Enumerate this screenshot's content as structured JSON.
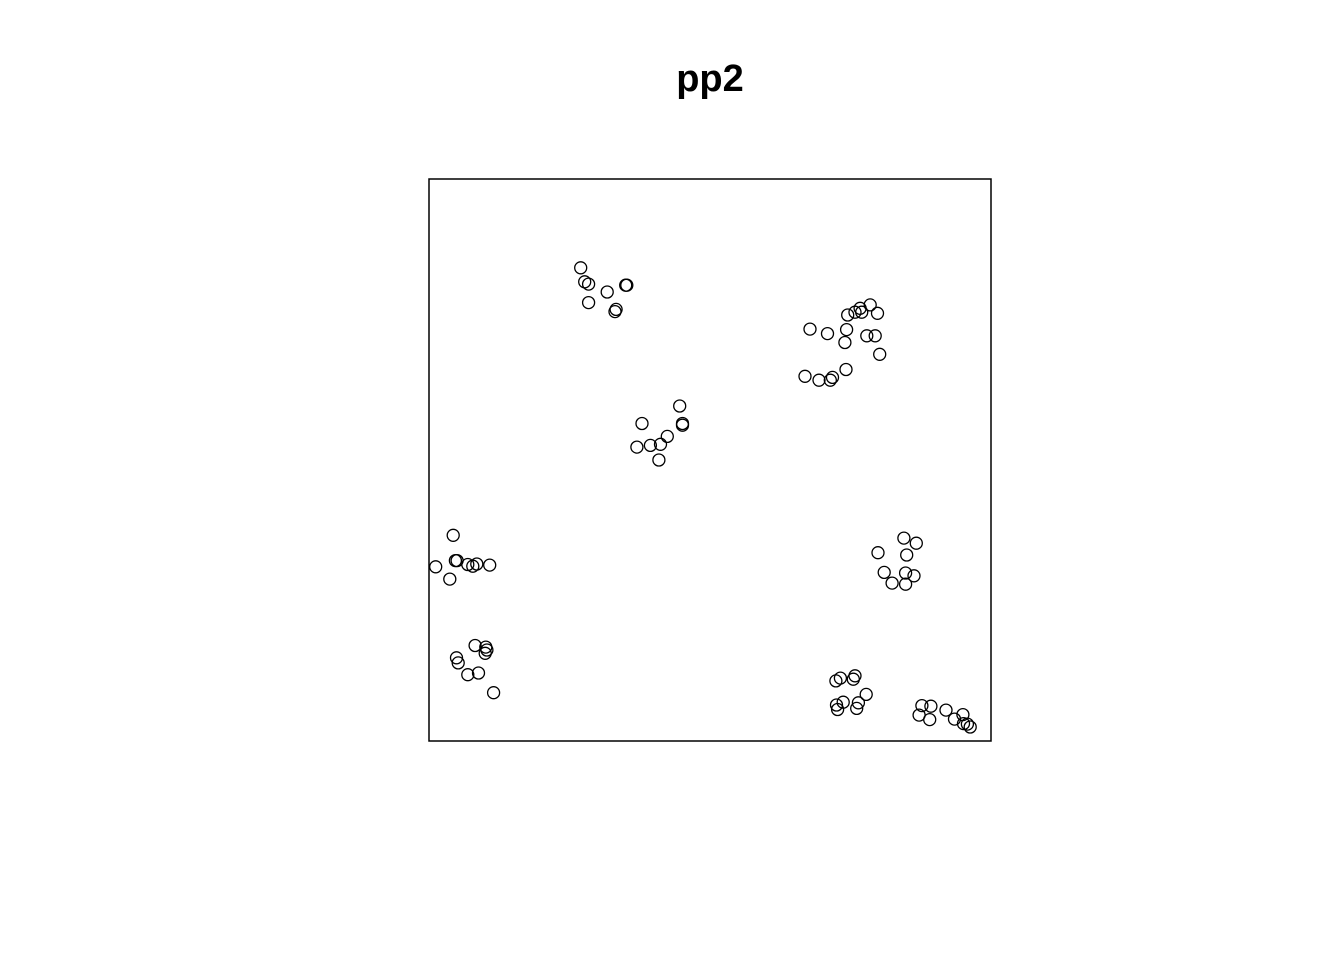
{
  "chart_data": {
    "type": "scatter",
    "title": "pp2",
    "xlabel": "",
    "ylabel": "",
    "xlim": [
      0,
      1
    ],
    "ylim": [
      0,
      1
    ],
    "axes_shown": false,
    "marker": "open-circle",
    "marker_color": "#000000",
    "points": [
      [
        0.27,
        0.842
      ],
      [
        0.277,
        0.817
      ],
      [
        0.284,
        0.813
      ],
      [
        0.284,
        0.78
      ],
      [
        0.317,
        0.799
      ],
      [
        0.35,
        0.811
      ],
      [
        0.352,
        0.811
      ],
      [
        0.333,
        0.768
      ],
      [
        0.331,
        0.764
      ],
      [
        0.678,
        0.733
      ],
      [
        0.709,
        0.725
      ],
      [
        0.74,
        0.709
      ],
      [
        0.743,
        0.732
      ],
      [
        0.745,
        0.758
      ],
      [
        0.758,
        0.763
      ],
      [
        0.767,
        0.77
      ],
      [
        0.77,
        0.763
      ],
      [
        0.785,
        0.776
      ],
      [
        0.798,
        0.761
      ],
      [
        0.779,
        0.721
      ],
      [
        0.794,
        0.721
      ],
      [
        0.802,
        0.688
      ],
      [
        0.742,
        0.661
      ],
      [
        0.718,
        0.647
      ],
      [
        0.714,
        0.642
      ],
      [
        0.669,
        0.649
      ],
      [
        0.694,
        0.642
      ],
      [
        0.446,
        0.596
      ],
      [
        0.451,
        0.565
      ],
      [
        0.451,
        0.562
      ],
      [
        0.379,
        0.565
      ],
      [
        0.424,
        0.542
      ],
      [
        0.412,
        0.528
      ],
      [
        0.394,
        0.526
      ],
      [
        0.37,
        0.523
      ],
      [
        0.409,
        0.5
      ],
      [
        0.043,
        0.366
      ],
      [
        0.047,
        0.321
      ],
      [
        0.05,
        0.321
      ],
      [
        0.012,
        0.31
      ],
      [
        0.037,
        0.288
      ],
      [
        0.069,
        0.314
      ],
      [
        0.078,
        0.311
      ],
      [
        0.085,
        0.315
      ],
      [
        0.108,
        0.313
      ],
      [
        0.845,
        0.361
      ],
      [
        0.867,
        0.352
      ],
      [
        0.799,
        0.335
      ],
      [
        0.85,
        0.331
      ],
      [
        0.81,
        0.3
      ],
      [
        0.848,
        0.299
      ],
      [
        0.863,
        0.294
      ],
      [
        0.824,
        0.281
      ],
      [
        0.848,
        0.279
      ],
      [
        0.082,
        0.17
      ],
      [
        0.101,
        0.167
      ],
      [
        0.103,
        0.162
      ],
      [
        0.1,
        0.156
      ],
      [
        0.049,
        0.148
      ],
      [
        0.052,
        0.139
      ],
      [
        0.069,
        0.118
      ],
      [
        0.088,
        0.121
      ],
      [
        0.115,
        0.086
      ],
      [
        0.724,
        0.107
      ],
      [
        0.732,
        0.112
      ],
      [
        0.755,
        0.11
      ],
      [
        0.758,
        0.116
      ],
      [
        0.778,
        0.083
      ],
      [
        0.737,
        0.069
      ],
      [
        0.725,
        0.064
      ],
      [
        0.727,
        0.056
      ],
      [
        0.764,
        0.068
      ],
      [
        0.761,
        0.058
      ],
      [
        0.877,
        0.063
      ],
      [
        0.893,
        0.062
      ],
      [
        0.92,
        0.055
      ],
      [
        0.872,
        0.046
      ],
      [
        0.891,
        0.038
      ],
      [
        0.935,
        0.039
      ],
      [
        0.95,
        0.047
      ],
      [
        0.951,
        0.031
      ],
      [
        0.958,
        0.03
      ],
      [
        0.963,
        0.025
      ]
    ]
  }
}
